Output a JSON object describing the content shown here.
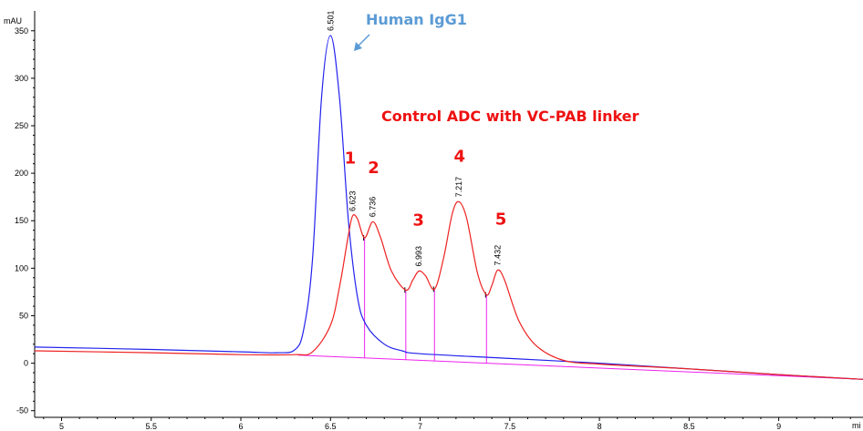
{
  "chart_data": {
    "type": "line",
    "ylabel": "mAU",
    "xlabel": "mi",
    "xlim": [
      4.85,
      9.47
    ],
    "ylim": [
      -57,
      368
    ],
    "x_ticks": [
      5,
      5.5,
      6,
      6.5,
      7,
      7.5,
      8,
      8.5,
      9
    ],
    "x_tick_labels": [
      "5",
      "5.5",
      "6",
      "6.5",
      "7",
      "7.5",
      "8",
      "8.5",
      "9"
    ],
    "y_ticks": [
      -50,
      0,
      50,
      100,
      150,
      200,
      250,
      300,
      350
    ],
    "y_tick_labels": [
      "-50",
      "0",
      "50",
      "100",
      "150",
      "200",
      "250",
      "300",
      "350"
    ],
    "grid": false,
    "series": [
      {
        "name": "Human IgG1",
        "color": "#2222ee",
        "x": [
          4.85,
          5.5,
          6.0,
          6.2,
          6.3,
          6.35,
          6.4,
          6.45,
          6.5,
          6.55,
          6.6,
          6.65,
          6.7,
          6.8,
          6.9,
          7.0,
          7.5,
          8.0,
          8.5,
          9.0,
          9.47
        ],
        "y": [
          17,
          14.5,
          12,
          11,
          14,
          35,
          110,
          280,
          345,
          280,
          150,
          70,
          40,
          20,
          13,
          10,
          5,
          0,
          -6,
          -12,
          -17
        ]
      },
      {
        "name": "Control ADC with VC-PAB linker",
        "color": "#ee2222",
        "x": [
          4.85,
          5.5,
          6.0,
          6.3,
          6.4,
          6.5,
          6.55,
          6.6,
          6.623,
          6.65,
          6.69,
          6.736,
          6.78,
          6.84,
          6.92,
          6.96,
          6.993,
          7.03,
          7.08,
          7.13,
          7.18,
          7.217,
          7.26,
          7.32,
          7.37,
          7.4,
          7.432,
          7.47,
          7.55,
          7.65,
          7.8,
          8.0,
          8.5,
          9.0,
          9.47
        ],
        "y": [
          13,
          11,
          9,
          9,
          12,
          40,
          80,
          135,
          155,
          152,
          132,
          149,
          132,
          97,
          77,
          88,
          97,
          92,
          78,
          110,
          158,
          170,
          152,
          95,
          72,
          82,
          98,
          88,
          45,
          18,
          3,
          -1,
          -6,
          -12,
          -17
        ]
      }
    ],
    "peaks": [
      {
        "rt": "6.501",
        "x": 6.501,
        "y": 345
      },
      {
        "rt": "6.623",
        "x": 6.623,
        "y": 155
      },
      {
        "rt": "6.736",
        "x": 6.736,
        "y": 149
      },
      {
        "rt": "6.993",
        "x": 6.993,
        "y": 97
      },
      {
        "rt": "7.217",
        "x": 7.217,
        "y": 170
      },
      {
        "rt": "7.432",
        "x": 7.432,
        "y": 98
      }
    ],
    "integration": {
      "color": "#ee22ee",
      "baseline": {
        "x": [
          6.32,
          9.47
        ],
        "y": [
          8.5,
          -17
        ]
      },
      "drops": [
        {
          "x": 6.69,
          "y": 132
        },
        {
          "x": 6.92,
          "y": 77
        },
        {
          "x": 7.08,
          "y": 78
        },
        {
          "x": 7.37,
          "y": 72
        }
      ]
    },
    "annotations": {
      "igg1_label": "Human IgG1",
      "adc_label": "Control ADC with VC-PAB linker",
      "peak_numbers": [
        {
          "text": "1",
          "x": 6.61,
          "y": 210
        },
        {
          "text": "2",
          "x": 6.74,
          "y": 200
        },
        {
          "text": "3",
          "x": 6.99,
          "y": 145
        },
        {
          "text": "4",
          "x": 7.22,
          "y": 212
        },
        {
          "text": "5",
          "x": 7.45,
          "y": 146
        }
      ]
    },
    "colors": {
      "igg1_label": "#5b9bd5",
      "adc_label": "#ee1111",
      "axis": "#000000"
    }
  }
}
